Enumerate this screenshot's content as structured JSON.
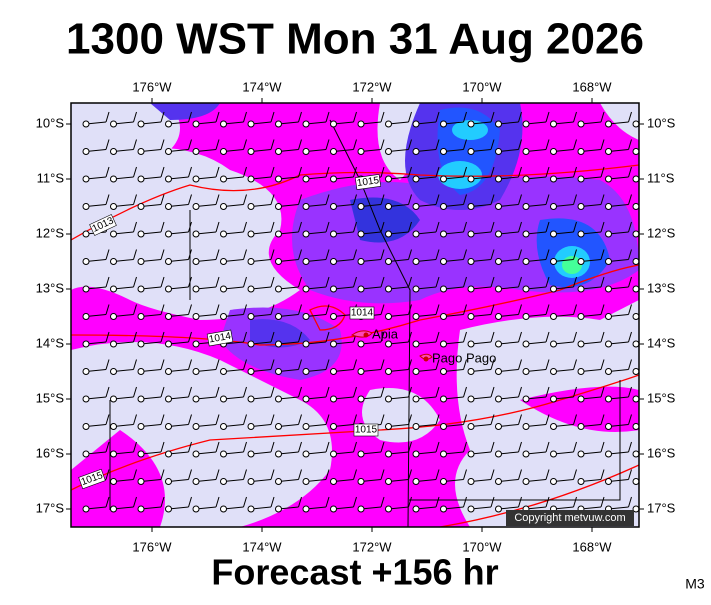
{
  "title": "1300 WST Mon 31 Aug 2026",
  "footer": "Forecast +156 hr",
  "model": "M3",
  "copyright": "Copyright metvuw.com",
  "lon_labels": [
    "176°W",
    "174°W",
    "172°W",
    "170°W",
    "168°W"
  ],
  "lat_labels": [
    "10°S",
    "11°S",
    "12°S",
    "13°S",
    "14°S",
    "15°S",
    "16°S",
    "17°S"
  ],
  "isobar_labels": [
    "1015",
    "1013",
    "1014",
    "1014",
    "1015",
    "1015"
  ],
  "places": [
    "Apia",
    "Pago Pago"
  ]
}
